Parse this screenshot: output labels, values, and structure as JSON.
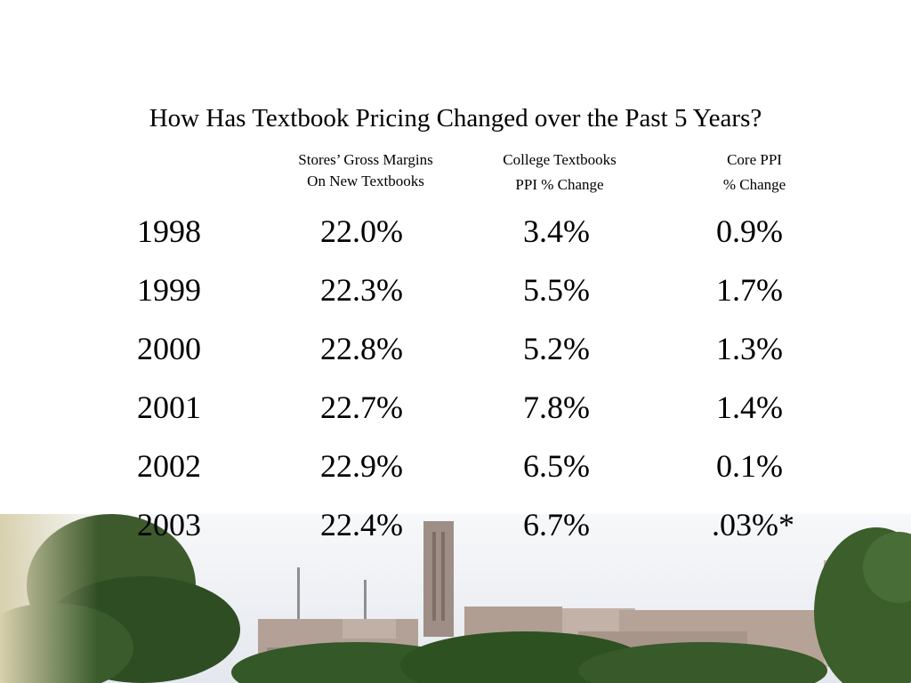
{
  "title": "How Has Textbook Pricing Changed over the Past 5 Years?",
  "headers": [
    {
      "line1": "Stores’ Gross Margins",
      "line2": "On New Textbooks"
    },
    {
      "line1": "College Textbooks",
      "line2": "PPI % Change"
    },
    {
      "line1": "Core PPI",
      "line2": "% Change"
    }
  ],
  "rows": [
    {
      "year": "1998",
      "margin": "22.0%",
      "textbook_ppi": "3.4%",
      "core_ppi": "0.9%"
    },
    {
      "year": "1999",
      "margin": "22.3%",
      "textbook_ppi": "5.5%",
      "core_ppi": "1.7%"
    },
    {
      "year": "2000",
      "margin": "22.8%",
      "textbook_ppi": "5.2%",
      "core_ppi": "1.3%"
    },
    {
      "year": "2001",
      "margin": "22.7%",
      "textbook_ppi": "7.8%",
      "core_ppi": "1.4%"
    },
    {
      "year": "2002",
      "margin": "22.9%",
      "textbook_ppi": "6.5%",
      "core_ppi": "0.1%"
    },
    {
      "year": "2003",
      "margin": "22.4%",
      "textbook_ppi": "6.7%",
      "core_ppi": ".03%*"
    }
  ]
}
